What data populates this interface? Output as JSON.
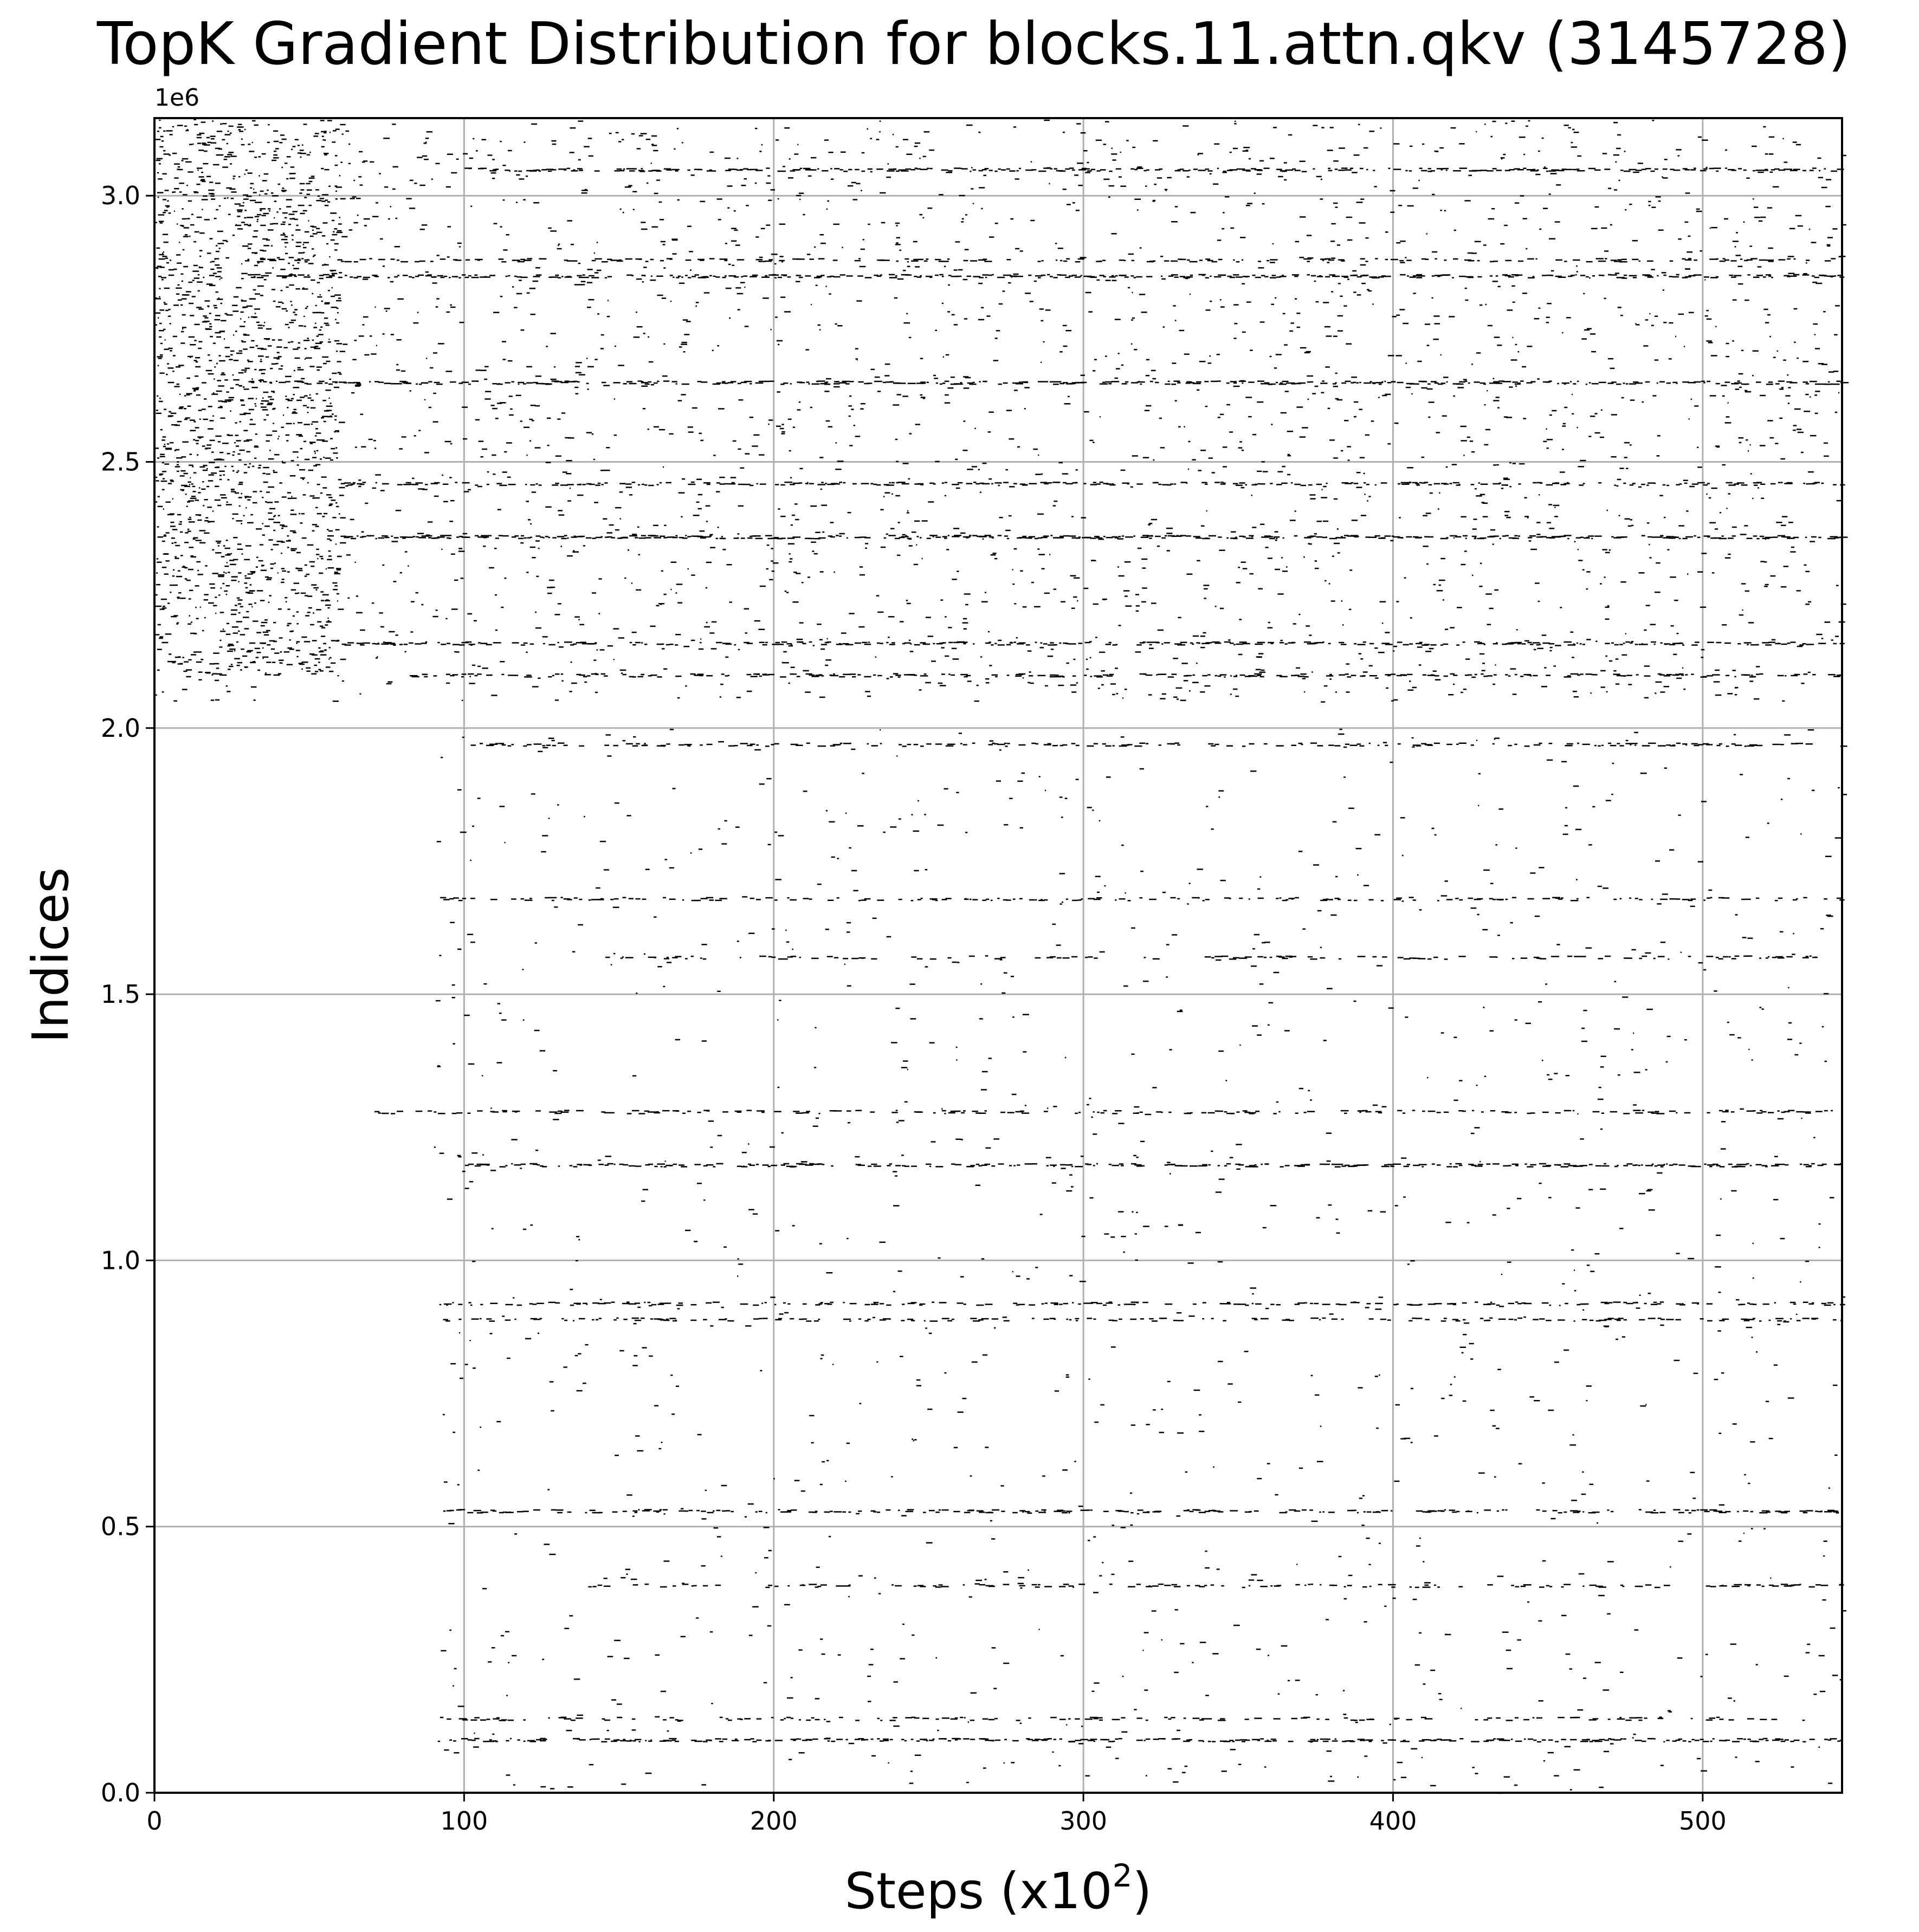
{
  "chart_data": {
    "type": "scatter",
    "title": "TopK Gradient Distribution for blocks.11.attn.qkv (3145728)",
    "xlabel": "Steps (x10",
    "xlabel_sup": "2",
    "xlabel_end": ")",
    "ylabel": "Indices",
    "y_offset_label": "1e6",
    "xlim": [
      0,
      545
    ],
    "ylim": [
      0,
      3145728
    ],
    "x_ticks": [
      0,
      100,
      200,
      300,
      400,
      500
    ],
    "x_tick_labels": [
      "0",
      "100",
      "200",
      "300",
      "400",
      "500"
    ],
    "y_ticks": [
      0,
      500000,
      1000000,
      1500000,
      2000000,
      2500000,
      3000000
    ],
    "y_tick_labels": [
      "0.0",
      "0.5",
      "1.0",
      "1.5",
      "2.0",
      "2.5",
      "3.0"
    ],
    "grid": true,
    "marker_color": "#000000",
    "grid_color": "#b0b0b0",
    "dense_bands": [
      {
        "y": 3050000,
        "x_start": 100,
        "x_end": 545,
        "density": 0.55
      },
      {
        "y": 2850000,
        "x_start": 30,
        "x_end": 545,
        "density": 0.6
      },
      {
        "y": 2880000,
        "x_start": 30,
        "x_end": 545,
        "density": 0.35
      },
      {
        "y": 2650000,
        "x_start": 30,
        "x_end": 545,
        "density": 0.6
      },
      {
        "y": 2460000,
        "x_start": 60,
        "x_end": 545,
        "density": 0.5
      },
      {
        "y": 2360000,
        "x_start": 60,
        "x_end": 545,
        "density": 0.7
      },
      {
        "y": 2160000,
        "x_start": 60,
        "x_end": 545,
        "density": 0.5
      },
      {
        "y": 2100000,
        "x_start": 80,
        "x_end": 545,
        "density": 0.45
      },
      {
        "y": 1970000,
        "x_start": 100,
        "x_end": 545,
        "density": 0.35
      },
      {
        "y": 1680000,
        "x_start": 90,
        "x_end": 545,
        "density": 0.35
      },
      {
        "y": 1570000,
        "x_start": 150,
        "x_end": 545,
        "density": 0.3
      },
      {
        "y": 1280000,
        "x_start": 70,
        "x_end": 545,
        "density": 0.35
      },
      {
        "y": 1180000,
        "x_start": 100,
        "x_end": 545,
        "density": 0.55
      },
      {
        "y": 920000,
        "x_start": 90,
        "x_end": 545,
        "density": 0.4
      },
      {
        "y": 890000,
        "x_start": 90,
        "x_end": 545,
        "density": 0.35
      },
      {
        "y": 530000,
        "x_start": 93,
        "x_end": 545,
        "density": 0.5
      },
      {
        "y": 390000,
        "x_start": 140,
        "x_end": 545,
        "density": 0.3
      },
      {
        "y": 140000,
        "x_start": 90,
        "x_end": 545,
        "density": 0.3
      },
      {
        "y": 100000,
        "x_start": 90,
        "x_end": 545,
        "density": 0.55
      }
    ],
    "scatter_regions": [
      {
        "x_start": 0,
        "x_end": 545,
        "y_start": 2050000,
        "y_end": 3145728,
        "count": 2600
      },
      {
        "x_start": 0,
        "x_end": 60,
        "y_start": 2100000,
        "y_end": 3145728,
        "count": 1400
      },
      {
        "x_start": 90,
        "x_end": 545,
        "y_start": 0,
        "y_end": 2000000,
        "count": 1200
      }
    ]
  }
}
